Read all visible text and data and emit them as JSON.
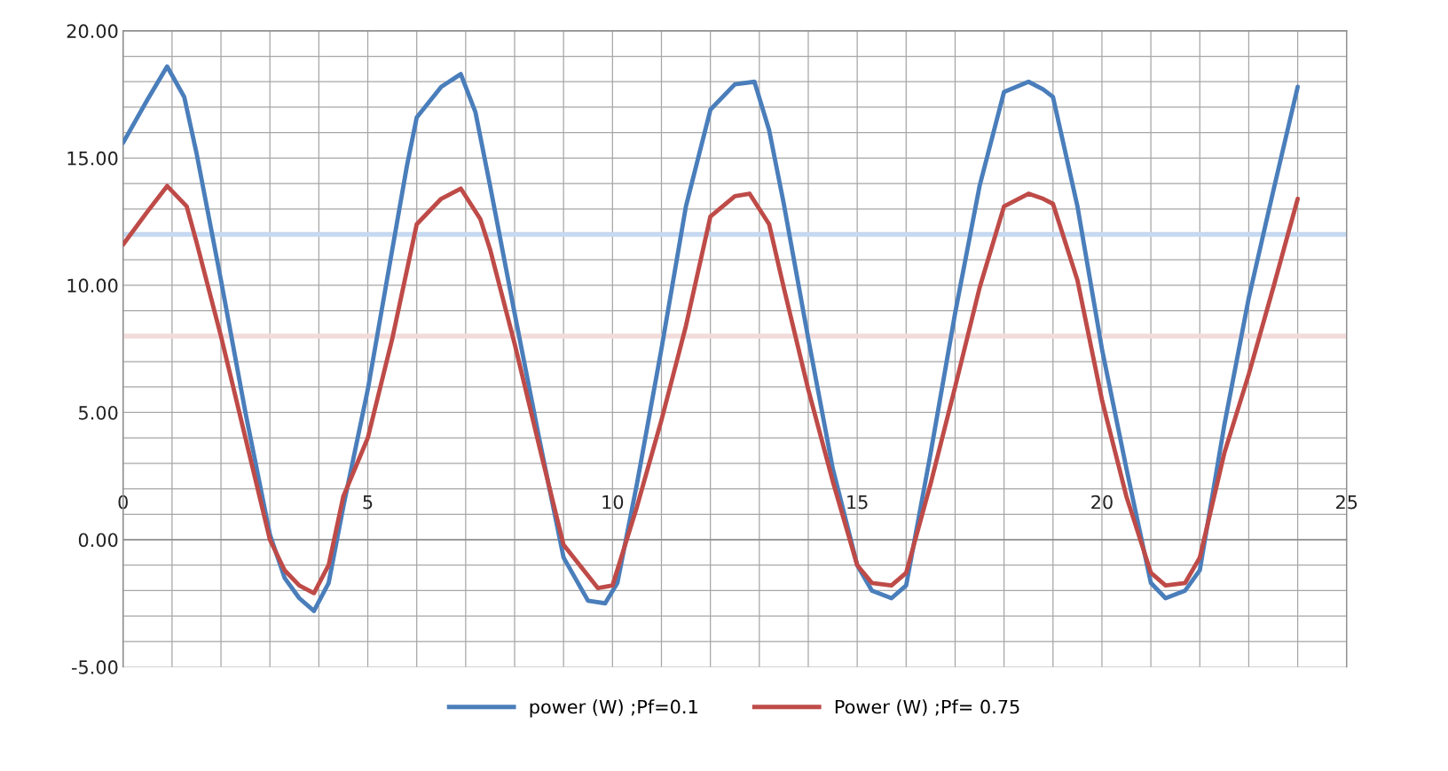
{
  "chart_data": {
    "type": "line",
    "xlim": [
      0,
      25
    ],
    "xticks": [
      0,
      {
        "value": 1,
        "label": null
      },
      {
        "value": 2,
        "label": null
      },
      {
        "value": 3,
        "label": null
      },
      {
        "value": 4,
        "label": null
      },
      5,
      {
        "value": 6,
        "label": null
      },
      {
        "value": 7,
        "label": null
      },
      {
        "value": 8,
        "label": null
      },
      {
        "value": 9,
        "label": null
      },
      10,
      {
        "value": 11,
        "label": null
      },
      {
        "value": 12,
        "label": null
      },
      {
        "value": 13,
        "label": null
      },
      {
        "value": 14,
        "label": null
      },
      15,
      {
        "value": 16,
        "label": null
      },
      {
        "value": 17,
        "label": null
      },
      {
        "value": 18,
        "label": null
      },
      {
        "value": 19,
        "label": null
      },
      20,
      {
        "value": 21,
        "label": null
      },
      {
        "value": 22,
        "label": null
      },
      {
        "value": 23,
        "label": null
      },
      {
        "value": 24,
        "label": null
      },
      25
    ],
    "ylim": [
      -5,
      20
    ],
    "yticks": [
      {
        "value": -5,
        "label": "-5.00"
      },
      {
        "value": -4,
        "label": null
      },
      {
        "value": -3,
        "label": null
      },
      {
        "value": -2,
        "label": null
      },
      {
        "value": -1,
        "label": null
      },
      {
        "value": 0,
        "label": "0.00"
      },
      {
        "value": 1,
        "label": null
      },
      {
        "value": 2,
        "label": null
      },
      {
        "value": 3,
        "label": null
      },
      {
        "value": 4,
        "label": null
      },
      {
        "value": 5,
        "label": "5.00"
      },
      {
        "value": 6,
        "label": null
      },
      {
        "value": 7,
        "label": null
      },
      {
        "value": 8,
        "label": null
      },
      {
        "value": 9,
        "label": null
      },
      {
        "value": 10,
        "label": "10.00"
      },
      {
        "value": 11,
        "label": null
      },
      {
        "value": 12,
        "label": null
      },
      {
        "value": 13,
        "label": null
      },
      {
        "value": 14,
        "label": null
      },
      {
        "value": 15,
        "label": "15.00"
      },
      {
        "value": 16,
        "label": null
      },
      {
        "value": 17,
        "label": null
      },
      {
        "value": 18,
        "label": null
      },
      {
        "value": 19,
        "label": null
      },
      {
        "value": 20,
        "label": "20.00"
      }
    ],
    "grid": true,
    "legend": "bottom",
    "marker": "none",
    "line_style": "solid",
    "ref_lines": [
      {
        "axis": "y",
        "value": 12,
        "color": "#c6d9f1"
      },
      {
        "axis": "y",
        "value": 8,
        "color": "#f2dcdb"
      }
    ],
    "series": [
      {
        "name": "power (W) ;Pf=0.1",
        "color": "#4a7ebb",
        "x": [
          0,
          0.5,
          0.9,
          1.25,
          1.5,
          2,
          2.5,
          3,
          3.3,
          3.6,
          3.9,
          4.2,
          4.5,
          5,
          5.5,
          5.8,
          6,
          6.5,
          6.9,
          7.2,
          7.5,
          8,
          8.5,
          9,
          9.5,
          9.85,
          10.1,
          10.5,
          11,
          11.5,
          12,
          12.5,
          12.9,
          13.2,
          13.5,
          14,
          14.5,
          15,
          15.3,
          15.7,
          16,
          16.5,
          17,
          17.5,
          18,
          18.5,
          18.8,
          19,
          19.5,
          20,
          20.5,
          21,
          21.3,
          21.7,
          22,
          22.5,
          23,
          23.5,
          24
        ],
        "values": [
          15.6,
          17.3,
          18.6,
          17.4,
          15.2,
          10.2,
          5.0,
          0.2,
          -1.5,
          -2.3,
          -2.8,
          -1.7,
          1.3,
          5.9,
          11.4,
          14.7,
          16.6,
          17.8,
          18.3,
          16.8,
          13.9,
          8.9,
          4.0,
          -0.7,
          -2.4,
          -2.5,
          -1.7,
          2.2,
          7.5,
          13.1,
          16.9,
          17.9,
          18.0,
          16.1,
          13.2,
          7.9,
          2.8,
          -1.0,
          -2.0,
          -2.3,
          -1.8,
          3.4,
          8.9,
          13.9,
          17.6,
          18.0,
          17.7,
          17.4,
          13.1,
          7.5,
          2.8,
          -1.7,
          -2.3,
          -2.0,
          -1.2,
          4.5,
          9.5,
          13.7,
          17.8
        ]
      },
      {
        "name": "Power (W) ;Pf= 0.75",
        "color": "#be4b48",
        "x": [
          0,
          0.5,
          0.9,
          1.3,
          1.5,
          2,
          2.5,
          3,
          3.3,
          3.6,
          3.9,
          4.2,
          4.5,
          5,
          5.5,
          6,
          6.5,
          6.9,
          7.3,
          7.5,
          8,
          8.5,
          9,
          9.7,
          10,
          10.5,
          11,
          11.5,
          12,
          12.5,
          12.8,
          13.2,
          13.5,
          14,
          14.5,
          15,
          15.3,
          15.7,
          16,
          16.5,
          17,
          17.5,
          18,
          18.5,
          18.8,
          19,
          19.5,
          20,
          20.5,
          21,
          21.3,
          21.7,
          22,
          22.5,
          23,
          23.5,
          24
        ],
        "values": [
          11.6,
          12.9,
          13.9,
          13.1,
          11.7,
          8.0,
          4.0,
          0.0,
          -1.2,
          -1.8,
          -2.1,
          -1.0,
          1.7,
          4.0,
          7.9,
          12.4,
          13.4,
          13.8,
          12.6,
          11.4,
          7.7,
          3.7,
          -0.2,
          -1.9,
          -1.8,
          1.3,
          4.7,
          8.4,
          12.7,
          13.5,
          13.6,
          12.4,
          9.9,
          5.9,
          2.3,
          -1.0,
          -1.7,
          -1.8,
          -1.3,
          2.2,
          6.0,
          9.9,
          13.1,
          13.6,
          13.4,
          13.2,
          10.2,
          5.5,
          1.7,
          -1.3,
          -1.8,
          -1.7,
          -0.7,
          3.4,
          6.5,
          9.9,
          13.4
        ]
      }
    ]
  }
}
